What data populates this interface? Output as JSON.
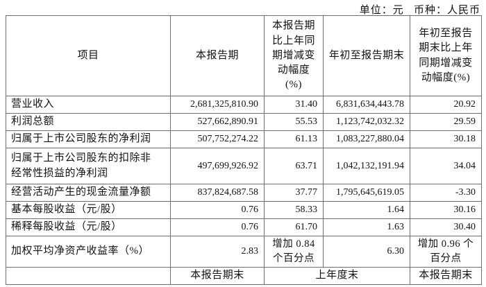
{
  "page": {
    "unit_line": "单位：元   币种：人民币"
  },
  "table": {
    "headers": [
      "项目",
      "本报告期",
      "本报告期\n比上年同\n期增减变\n动幅度\n(%)",
      "年初至报告期末",
      "年初至报告\n期末比上年\n同期增减变\n动幅度(%)"
    ],
    "rows": [
      [
        "营业收入",
        "2,681,325,810.90",
        "31.40",
        "6,831,634,443.78",
        "20.92"
      ],
      [
        "利润总额",
        "527,662,890.91",
        "55.53",
        "1,123,742,032.32",
        "29.59"
      ],
      [
        "归属于上市公司股东的净利润",
        "507,752,274.22",
        "61.13",
        "1,083,227,880.04",
        "30.18"
      ],
      [
        "归属于上市公司股东的扣除非\n经常性损益的净利润",
        "497,699,926.92",
        "63.71",
        "1,042,132,191.94",
        "34.04"
      ],
      [
        "经营活动产生的现金流量净额",
        "837,824,687.58",
        "37.77",
        "1,795,645,619.05",
        "-3.30"
      ],
      [
        "基本每股收益（元/股）",
        "0.76",
        "58.33",
        "1.64",
        "30.16"
      ],
      [
        "稀释每股收益（元/股）",
        "0.76",
        "61.70",
        "1.63",
        "30.40"
      ],
      [
        "加权平均净资产收益率（%）",
        "2.83",
        "增加 0.84\n个百分点",
        "6.30",
        "增加 0.96 个\n百分点"
      ]
    ],
    "row_heights": [
      "h25",
      "h25",
      "h25",
      "h52",
      "h25",
      "h25",
      "h25",
      "h45"
    ],
    "footer": [
      "",
      "本报告期末",
      "上年度末",
      "本报告期末"
    ]
  },
  "colors": {
    "border": "#6e6e6e",
    "text": "#121212",
    "background": "#ffffff"
  }
}
